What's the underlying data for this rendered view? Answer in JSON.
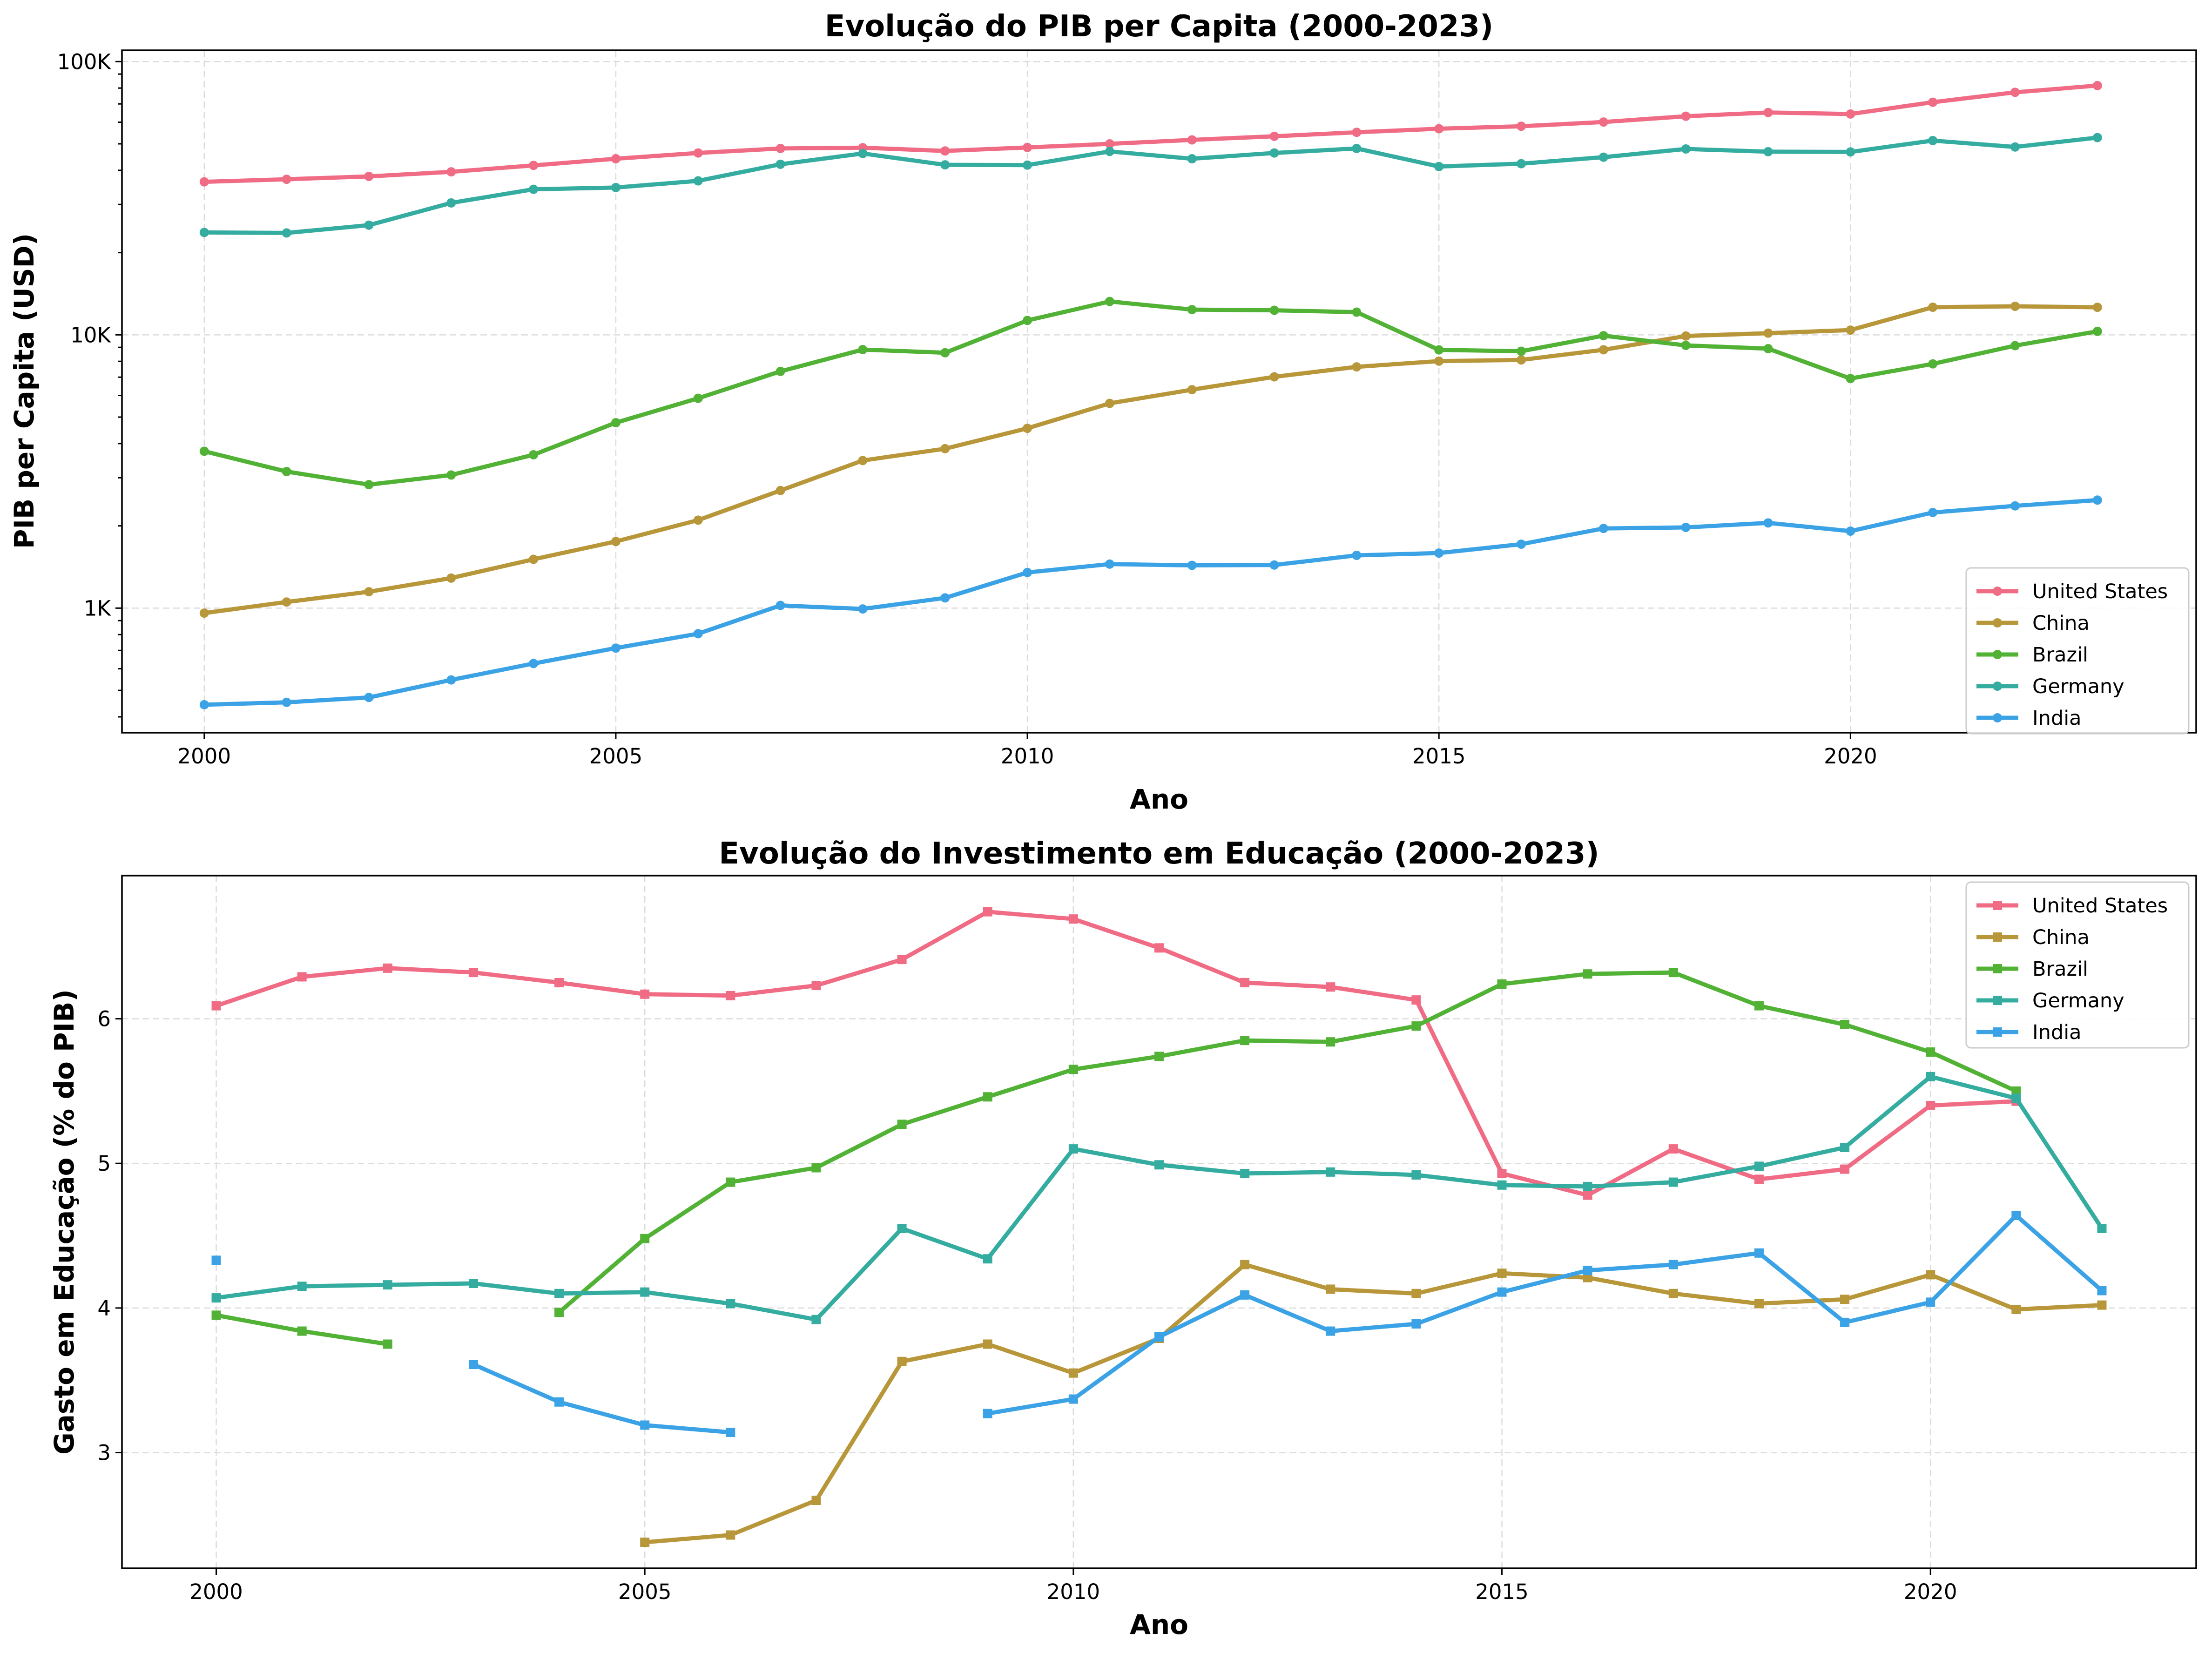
{
  "colors": {
    "United States": "#f06b84",
    "China": "#b8973a",
    "Brazil": "#52b235",
    "Germany": "#35aca0",
    "India": "#3ba3e5"
  },
  "chart_data": [
    {
      "type": "line",
      "title": "Evolução do PIB per Capita (2000-2023)",
      "xlabel": "Ano",
      "ylabel": "PIB per Capita (USD)",
      "yscale": "log",
      "marker": "circle",
      "xlim": [
        1999,
        2024.2
      ],
      "ylim": [
        350,
        110000
      ],
      "xticks": [
        2000,
        2005,
        2010,
        2015,
        2020
      ],
      "yticks": [
        1000,
        10000,
        100000
      ],
      "ytick_labels": [
        "1K",
        "10K",
        "100K"
      ],
      "grid": true,
      "legend": "lower-right",
      "x": [
        2000,
        2001,
        2002,
        2003,
        2004,
        2005,
        2006,
        2007,
        2008,
        2009,
        2010,
        2011,
        2012,
        2013,
        2014,
        2015,
        2016,
        2017,
        2018,
        2019,
        2020,
        2021,
        2022,
        2023
      ],
      "series": [
        {
          "name": "United States",
          "values": [
            36300,
            37100,
            38000,
            39500,
            41700,
            44100,
            46300,
            48100,
            48400,
            47100,
            48500,
            50000,
            51700,
            53300,
            55100,
            56800,
            58000,
            60100,
            63100,
            65100,
            64300,
            71000,
            77200,
            81700
          ]
        },
        {
          "name": "China",
          "values": [
            959,
            1053,
            1148,
            1288,
            1509,
            1753,
            2099,
            2694,
            3468,
            3832,
            4550,
            5614,
            6301,
            7020,
            7636,
            8016,
            8094,
            8817,
            9905,
            10144,
            10409,
            12618,
            12720,
            12614
          ]
        },
        {
          "name": "Brazil",
          "values": [
            3750,
            3160,
            2830,
            3070,
            3640,
            4770,
            5860,
            7350,
            8830,
            8600,
            11290,
            13250,
            12370,
            12300,
            12110,
            8810,
            8710,
            9930,
            9150,
            8900,
            6920,
            7830,
            9130,
            10300
          ]
        },
        {
          "name": "Germany",
          "values": [
            23700,
            23600,
            25200,
            30400,
            34100,
            34600,
            36600,
            42100,
            46100,
            41900,
            41800,
            46900,
            44100,
            46300,
            48100,
            41300,
            42300,
            44700,
            47900,
            46800,
            46700,
            51400,
            48700,
            52700
          ]
        },
        {
          "name": "India",
          "values": [
            443,
            452,
            471,
            546,
            627,
            714,
            806,
            1023,
            993,
            1090,
            1350,
            1449,
            1434,
            1438,
            1560,
            1590,
            1714,
            1957,
            1974,
            2050,
            1913,
            2238,
            2367,
            2485
          ]
        }
      ]
    },
    {
      "type": "line",
      "title": "Evolução do Investimento em Educação (2000-2023)",
      "xlabel": "Ano",
      "ylabel": "Gasto em Educação (% do PIB)",
      "marker": "square",
      "xlim": [
        1998.9,
        2023.1
      ],
      "ylim": [
        2.2,
        6.99
      ],
      "xticks": [
        2000,
        2005,
        2010,
        2015,
        2020
      ],
      "yticks": [
        3,
        4,
        5,
        6
      ],
      "grid": true,
      "legend": "upper-right",
      "x": [
        2000,
        2001,
        2002,
        2003,
        2004,
        2005,
        2006,
        2007,
        2008,
        2009,
        2010,
        2011,
        2012,
        2013,
        2014,
        2015,
        2016,
        2017,
        2018,
        2019,
        2020,
        2021,
        2022
      ],
      "series": [
        {
          "name": "United States",
          "values": [
            6.09,
            6.29,
            6.35,
            6.32,
            6.25,
            6.17,
            6.16,
            6.23,
            6.41,
            6.74,
            6.69,
            6.49,
            6.25,
            6.22,
            6.13,
            4.93,
            4.78,
            5.1,
            4.89,
            4.96,
            5.4,
            5.43,
            null
          ]
        },
        {
          "name": "China",
          "values": [
            null,
            null,
            null,
            null,
            null,
            2.38,
            2.43,
            2.67,
            3.63,
            3.75,
            3.55,
            3.79,
            4.3,
            4.13,
            4.1,
            4.24,
            4.21,
            4.1,
            4.03,
            4.06,
            4.23,
            3.99,
            4.02
          ]
        },
        {
          "name": "Brazil",
          "values": [
            3.95,
            3.84,
            3.75,
            null,
            3.97,
            4.48,
            4.87,
            4.97,
            5.27,
            5.46,
            5.65,
            5.74,
            5.85,
            5.84,
            5.95,
            6.24,
            6.31,
            6.32,
            6.09,
            5.96,
            5.77,
            5.5,
            null
          ]
        },
        {
          "name": "Germany",
          "values": [
            4.07,
            4.15,
            4.16,
            4.17,
            4.1,
            4.11,
            4.03,
            3.92,
            4.55,
            4.34,
            5.1,
            4.99,
            4.93,
            4.94,
            4.92,
            4.85,
            4.84,
            4.87,
            4.98,
            5.11,
            5.6,
            5.45,
            4.55
          ]
        },
        {
          "name": "India",
          "values": [
            4.33,
            null,
            null,
            3.61,
            3.35,
            3.19,
            3.14,
            null,
            null,
            3.27,
            3.37,
            3.8,
            4.09,
            3.84,
            3.89,
            4.11,
            4.26,
            4.3,
            4.38,
            3.9,
            4.04,
            4.64,
            4.12
          ]
        }
      ]
    }
  ]
}
